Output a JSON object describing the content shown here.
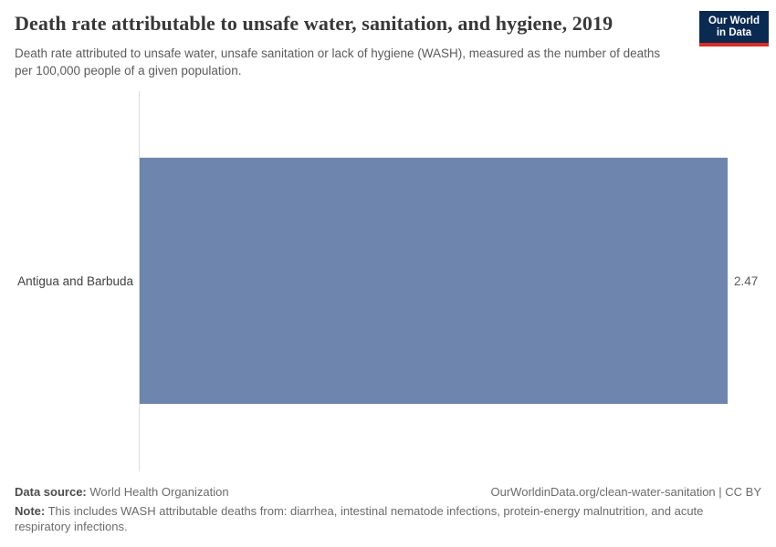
{
  "header": {
    "title": "Death rate attributable to unsafe water, sanitation, and hygiene, 2019",
    "subtitle": "Death rate attributed to unsafe water, unsafe sanitation or lack of hygiene (WASH), measured as the number of deaths per 100,000 people of a given population.",
    "logo": {
      "line1": "Our World",
      "line2": "in Data"
    }
  },
  "chart_data": {
    "type": "bar",
    "orientation": "horizontal",
    "title": "Death rate attributable to unsafe water, sanitation, and hygiene, 2019",
    "categories": [
      "Antigua and Barbuda"
    ],
    "values": [
      2.47
    ],
    "value_labels": [
      "2.47"
    ],
    "xlim": [
      0,
      2.47
    ],
    "xlabel": "",
    "ylabel": "",
    "grid": false,
    "legend": false,
    "bar_color": "#6e85ad"
  },
  "footer": {
    "data_source_label": "Data source:",
    "data_source_value": "World Health Organization",
    "attribution": "OurWorldinData.org/clean-water-sanitation | CC BY",
    "note_label": "Note:",
    "note_text": "This includes WASH attributable deaths from: diarrhea, intestinal nematode infections, protein-energy malnutrition, and acute respiratory infections."
  },
  "colors": {
    "bar": "#6e85ad",
    "logo_background": "#0a2a52",
    "logo_accent": "#dc2b22",
    "axis_line": "#dcdcdc",
    "title_text": "#383838",
    "muted_text": "#6b6b6b",
    "label_text": "#3f3f3f"
  }
}
